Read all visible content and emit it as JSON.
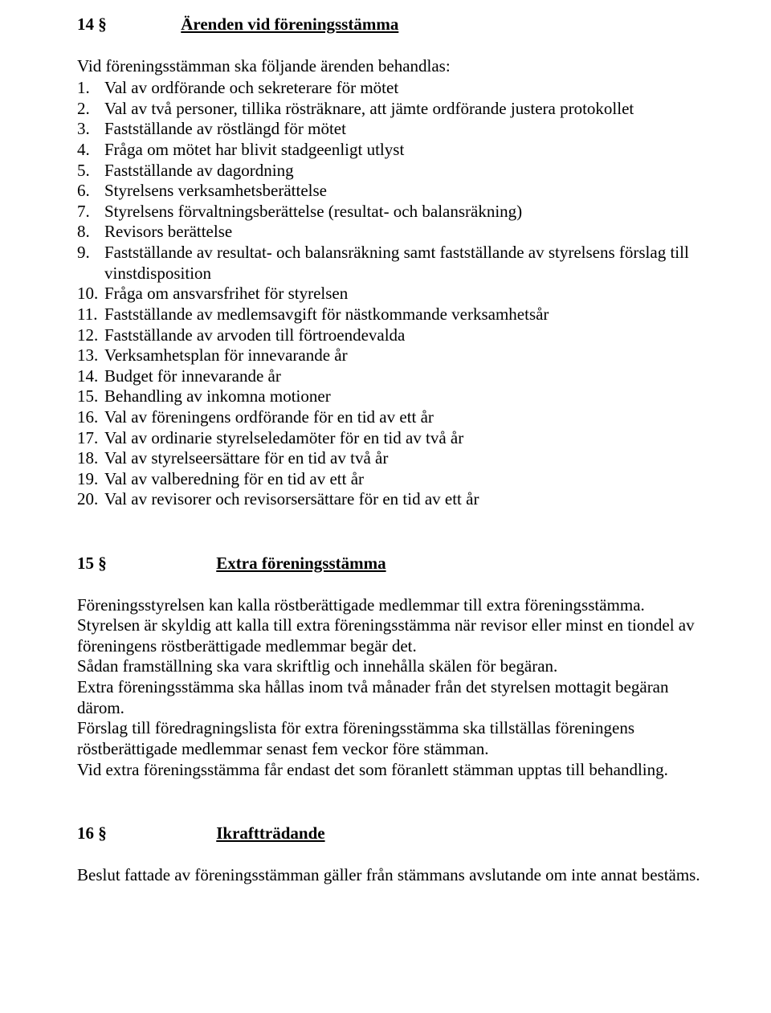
{
  "s14": {
    "num": "14 §",
    "title": "Ärenden vid föreningsstämma",
    "intro": "Vid föreningsstämman ska följande ärenden behandlas:",
    "items": [
      "Val av ordförande och sekreterare för mötet",
      "Val av två personer, tillika rösträknare, att jämte ordförande justera protokollet",
      "Fastställande av röstlängd för mötet",
      "Fråga om mötet har blivit stadgeenligt utlyst",
      "Fastställande av dagordning",
      "Styrelsens verksamhetsberättelse",
      "Styrelsens förvaltningsberättelse (resultat- och balansräkning)",
      "Revisors berättelse",
      "Fastställande av resultat- och balansräkning samt fastställande av styrelsens förslag till vinstdisposition",
      "Fråga om ansvarsfrihet för styrelsen",
      "Fastställande av medlemsavgift för nästkommande verksamhetsår",
      "Fastställande av arvoden till förtroendevalda",
      "Verksamhetsplan för innevarande år",
      "Budget för innevarande år",
      "Behandling av inkomna motioner",
      "Val av föreningens ordförande för en tid av ett år",
      "Val av ordinarie styrelseledamöter för en tid av två år",
      "Val av styrelseersättare för en tid av två år",
      "Val av valberedning för en tid av ett år",
      "Val av revisorer och revisorsersättare för en tid av ett år"
    ]
  },
  "s15": {
    "num": "15 §",
    "title": "Extra föreningsstämma",
    "p1": "Föreningsstyrelsen kan kalla röstberättigade medlemmar till extra föreningsstämma.",
    "p2": "Styrelsen är skyldig att kalla till extra föreningsstämma när revisor eller minst en tiondel av föreningens röstberättigade medlemmar begär det.",
    "p3": "Sådan framställning ska vara skriftlig och innehålla skälen för begäran.",
    "p4": "Extra föreningsstämma ska hållas inom två månader från det styrelsen mottagit begäran därom.",
    "p5": "Förslag till föredragningslista för extra föreningsstämma ska tillställas föreningens röstberättigade medlemmar senast fem veckor före stämman.",
    "p6": "Vid extra föreningsstämma får endast det som föranlett stämman upptas till behandling."
  },
  "s16": {
    "num": "16 §",
    "title": "Ikraftträdande",
    "p1": "Beslut fattade av föreningsstämman gäller från stämmans avslutande om inte annat bestäms."
  }
}
